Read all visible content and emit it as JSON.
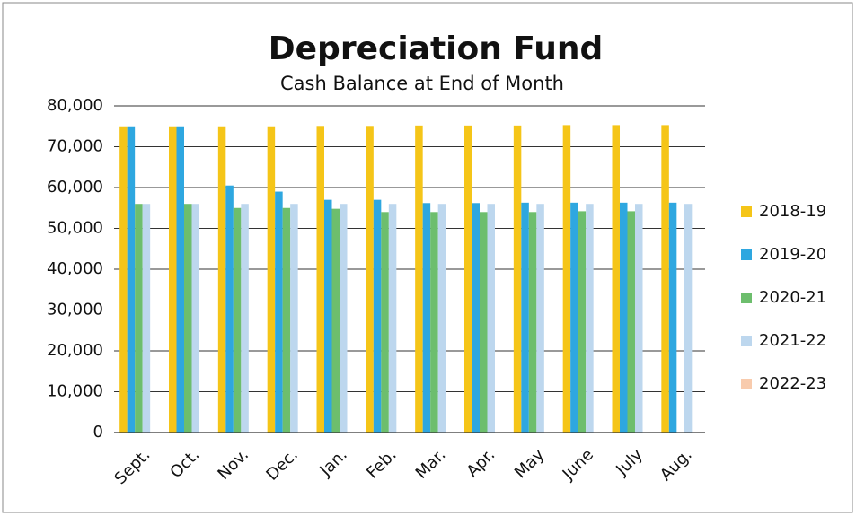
{
  "chart_data": {
    "type": "bar",
    "title": "Depreciation Fund",
    "subtitle": "Cash Balance at End of Month",
    "categories": [
      "Sept.",
      "Oct.",
      "Nov.",
      "Dec.",
      "Jan.",
      "Feb.",
      "Mar.",
      "Apr.",
      "May",
      "June",
      "July",
      "Aug."
    ],
    "series": [
      {
        "name": "2018-19",
        "color": "#f5c518",
        "values": [
          75000,
          75000,
          75000,
          75000,
          75100,
          75100,
          75200,
          75200,
          75200,
          75300,
          75300,
          75300
        ]
      },
      {
        "name": "2019-20",
        "color": "#2ea7e0",
        "values": [
          75000,
          75000,
          60500,
          59000,
          57000,
          57000,
          56200,
          56200,
          56300,
          56300,
          56300,
          56300
        ]
      },
      {
        "name": "2020-21",
        "color": "#6dbe6d",
        "values": [
          56000,
          56000,
          55000,
          55000,
          54800,
          54000,
          54000,
          54000,
          54000,
          54200,
          54200,
          null
        ]
      },
      {
        "name": "2021-22",
        "color": "#bdd7ee",
        "values": [
          56000,
          56000,
          56000,
          56000,
          56000,
          56000,
          56000,
          56000,
          56000,
          56000,
          56000,
          56000
        ]
      },
      {
        "name": "2022-23",
        "color": "#f8cbad",
        "values": [
          null,
          null,
          null,
          null,
          null,
          null,
          null,
          null,
          null,
          null,
          null,
          null
        ]
      }
    ],
    "ylim": [
      0,
      80000
    ],
    "yticks": [
      0,
      {
        "value": 10000,
        "label": "10,000"
      },
      {
        "value": 20000,
        "label": "20,000"
      },
      {
        "value": 30000,
        "label": "30,000"
      },
      {
        "value": 40000,
        "label": "40,000"
      },
      {
        "value": 50000,
        "label": "50,000"
      },
      {
        "value": 60000,
        "label": "60,000"
      },
      {
        "value": 70000,
        "label": "70,000"
      },
      {
        "value": 80000,
        "label": "80,000"
      }
    ],
    "grid": true,
    "legend": "right"
  }
}
